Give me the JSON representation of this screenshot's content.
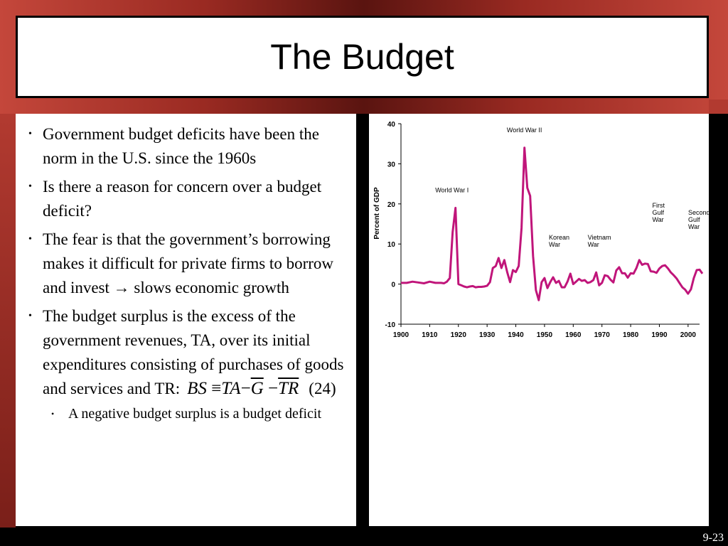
{
  "slide": {
    "title": "The Budget",
    "slide_number": "9-23"
  },
  "bullets": [
    "Government budget deficits have been the norm in the U.S. since the 1960s",
    "Is there a reason for concern over a budget deficit?",
    "The fear is that the government’s borrowing makes it difficult for private firms to borrow and invest → slows economic growth",
    "The budget surplus is the excess of the government revenues, TA, over its initial expenditures consisting of purchases of goods and services and TR:"
  ],
  "formula": {
    "lhs": "BS",
    "equiv": "≡",
    "ta": "TA",
    "minus1": "−",
    "g": "G",
    "minus2": "−",
    "tr": "TR",
    "eq_number": "(24)"
  },
  "sub_bullets": [
    "A negative budget surplus is a budget deficit"
  ],
  "colors": {
    "series_line": "#c0157a",
    "frame_red": "#c4473b"
  },
  "chart_data": {
    "type": "line",
    "title": "",
    "xlabel": "",
    "ylabel": "Percent of GDP",
    "xlim": [
      1900,
      2004
    ],
    "ylim": [
      -10,
      40
    ],
    "x_ticks": [
      1900,
      1910,
      1920,
      1930,
      1940,
      1950,
      1960,
      1970,
      1980,
      1990,
      2000
    ],
    "y_ticks": [
      -10,
      0,
      10,
      20,
      30,
      40
    ],
    "grid": false,
    "series": [
      {
        "name": "",
        "points": [
          [
            1900,
            0.3
          ],
          [
            1902,
            0.3
          ],
          [
            1904,
            0.6
          ],
          [
            1906,
            0.4
          ],
          [
            1908,
            0.2
          ],
          [
            1910,
            0.6
          ],
          [
            1912,
            0.3
          ],
          [
            1914,
            0.3
          ],
          [
            1915,
            0.2
          ],
          [
            1916,
            0.6
          ],
          [
            1917,
            1.5
          ],
          [
            1918,
            13
          ],
          [
            1919,
            19
          ],
          [
            1920,
            0
          ],
          [
            1921,
            -0.3
          ],
          [
            1922,
            -0.6
          ],
          [
            1923,
            -0.8
          ],
          [
            1924,
            -0.6
          ],
          [
            1925,
            -0.5
          ],
          [
            1926,
            -0.8
          ],
          [
            1927,
            -0.7
          ],
          [
            1928,
            -0.7
          ],
          [
            1929,
            -0.6
          ],
          [
            1930,
            -0.4
          ],
          [
            1931,
            0.5
          ],
          [
            1932,
            4
          ],
          [
            1933,
            4.5
          ],
          [
            1934,
            6.5
          ],
          [
            1935,
            4
          ],
          [
            1936,
            6
          ],
          [
            1937,
            3
          ],
          [
            1938,
            0.5
          ],
          [
            1939,
            3.5
          ],
          [
            1940,
            3
          ],
          [
            1941,
            4.5
          ],
          [
            1942,
            14
          ],
          [
            1943,
            34
          ],
          [
            1944,
            24
          ],
          [
            1945,
            22
          ],
          [
            1946,
            7
          ],
          [
            1947,
            -1.5
          ],
          [
            1948,
            -4
          ],
          [
            1949,
            0.5
          ],
          [
            1950,
            1.5
          ],
          [
            1951,
            -1
          ],
          [
            1952,
            0.5
          ],
          [
            1953,
            1.7
          ],
          [
            1954,
            0.3
          ],
          [
            1955,
            0.8
          ],
          [
            1956,
            -0.8
          ],
          [
            1957,
            -0.8
          ],
          [
            1958,
            0.6
          ],
          [
            1959,
            2.6
          ],
          [
            1960,
            0
          ],
          [
            1961,
            0.6
          ],
          [
            1962,
            1.3
          ],
          [
            1963,
            0.8
          ],
          [
            1964,
            1
          ],
          [
            1965,
            0.3
          ],
          [
            1966,
            0.5
          ],
          [
            1967,
            1
          ],
          [
            1968,
            2.9
          ],
          [
            1969,
            -0.3
          ],
          [
            1970,
            0.3
          ],
          [
            1971,
            2.2
          ],
          [
            1972,
            2
          ],
          [
            1973,
            1.1
          ],
          [
            1974,
            0.4
          ],
          [
            1975,
            3.4
          ],
          [
            1976,
            4.2
          ],
          [
            1977,
            2.7
          ],
          [
            1978,
            2.7
          ],
          [
            1979,
            1.6
          ],
          [
            1980,
            2.7
          ],
          [
            1981,
            2.6
          ],
          [
            1982,
            4
          ],
          [
            1983,
            6
          ],
          [
            1984,
            4.8
          ],
          [
            1985,
            5.1
          ],
          [
            1986,
            5
          ],
          [
            1987,
            3.2
          ],
          [
            1988,
            3.1
          ],
          [
            1989,
            2.8
          ],
          [
            1990,
            3.9
          ],
          [
            1991,
            4.5
          ],
          [
            1992,
            4.7
          ],
          [
            1993,
            3.9
          ],
          [
            1994,
            2.9
          ],
          [
            1995,
            2.2
          ],
          [
            1996,
            1.4
          ],
          [
            1997,
            0.3
          ],
          [
            1998,
            -0.8
          ],
          [
            1999,
            -1.4
          ],
          [
            2000,
            -2.4
          ],
          [
            2001,
            -1.3
          ],
          [
            2002,
            1.5
          ],
          [
            2003,
            3.5
          ],
          [
            2004,
            3.6
          ],
          [
            2005,
            2.6
          ]
        ]
      }
    ],
    "annotations": [
      {
        "text": "World War I",
        "x": 1919,
        "y": 19,
        "lines": [
          "World War I"
        ]
      },
      {
        "text": "World War II",
        "x": 1943,
        "y": 34,
        "lines": [
          "World War II"
        ]
      },
      {
        "text": "Korean War",
        "x": 1951,
        "y": 4,
        "lines": [
          "Korean",
          "War"
        ]
      },
      {
        "text": "Vietnam War",
        "x": 1968,
        "y": 4,
        "lines": [
          "Vietnam",
          "War"
        ]
      },
      {
        "text": "First Gulf War",
        "x": 1991,
        "y": 7,
        "lines": [
          "First",
          "Gulf",
          "War"
        ]
      },
      {
        "text": "Second Gulf War",
        "x": 2003,
        "y": 6,
        "lines": [
          "Second",
          "Gulf",
          "War"
        ]
      }
    ]
  }
}
